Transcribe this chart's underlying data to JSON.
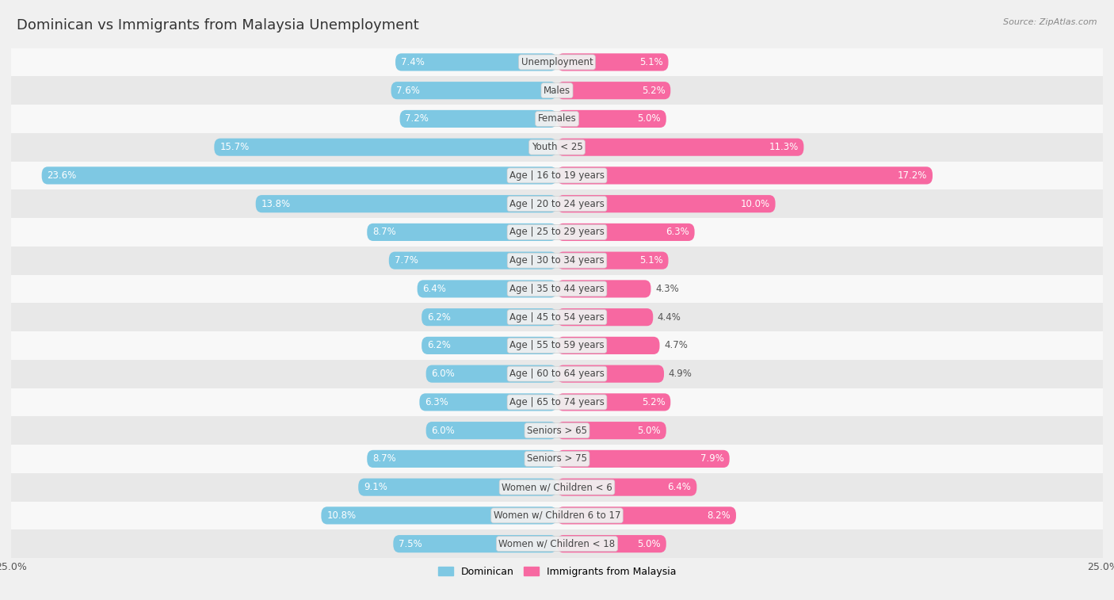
{
  "title": "Dominican vs Immigrants from Malaysia Unemployment",
  "source": "Source: ZipAtlas.com",
  "categories": [
    "Unemployment",
    "Males",
    "Females",
    "Youth < 25",
    "Age | 16 to 19 years",
    "Age | 20 to 24 years",
    "Age | 25 to 29 years",
    "Age | 30 to 34 years",
    "Age | 35 to 44 years",
    "Age | 45 to 54 years",
    "Age | 55 to 59 years",
    "Age | 60 to 64 years",
    "Age | 65 to 74 years",
    "Seniors > 65",
    "Seniors > 75",
    "Women w/ Children < 6",
    "Women w/ Children 6 to 17",
    "Women w/ Children < 18"
  ],
  "dominican": [
    7.4,
    7.6,
    7.2,
    15.7,
    23.6,
    13.8,
    8.7,
    7.7,
    6.4,
    6.2,
    6.2,
    6.0,
    6.3,
    6.0,
    8.7,
    9.1,
    10.8,
    7.5
  ],
  "malaysia": [
    5.1,
    5.2,
    5.0,
    11.3,
    17.2,
    10.0,
    6.3,
    5.1,
    4.3,
    4.4,
    4.7,
    4.9,
    5.2,
    5.0,
    7.9,
    6.4,
    8.2,
    5.0
  ],
  "dominican_color": "#7ec8e3",
  "malaysia_color": "#f768a1",
  "dominican_label": "Dominican",
  "malaysia_label": "Immigrants from Malaysia",
  "axis_max": 25.0,
  "bg_color": "#f0f0f0",
  "row_color_light": "#f8f8f8",
  "row_color_dark": "#e8e8e8",
  "bar_height": 0.62,
  "label_fontsize": 8.5,
  "cat_fontsize": 8.5,
  "title_fontsize": 13
}
